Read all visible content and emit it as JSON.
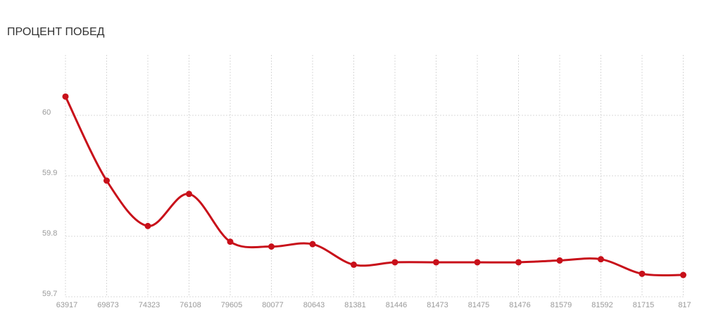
{
  "chart_data": {
    "type": "line",
    "title": "ПРОЦЕНТ ПОБЕД",
    "categories": [
      "63917",
      "69873",
      "74323",
      "76108",
      "79605",
      "80077",
      "80643",
      "81381",
      "81446",
      "81473",
      "81475",
      "81476",
      "81579",
      "81592",
      "81715",
      "817"
    ],
    "series": [
      {
        "color": "#c8101a",
        "values": [
          60.031,
          59.892,
          59.817,
          59.87,
          59.791,
          59.783,
          59.787,
          59.753,
          59.757,
          59.757,
          59.757,
          59.757,
          59.76,
          59.762,
          59.738,
          59.736
        ]
      }
    ],
    "ylim": [
      59.7,
      60.1
    ],
    "yticks": [
      59.7,
      59.8,
      59.9,
      60
    ],
    "grid": true
  }
}
